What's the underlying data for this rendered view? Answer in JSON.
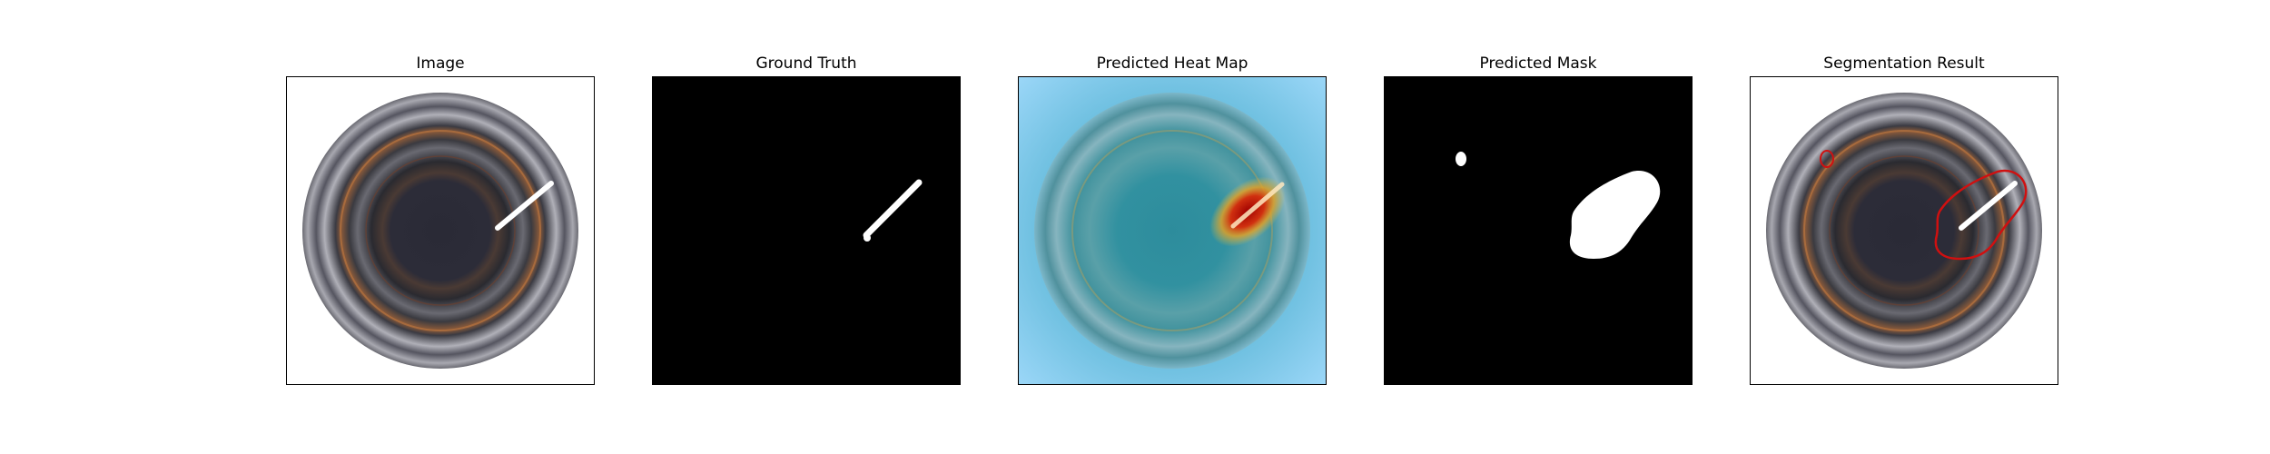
{
  "figure": {
    "panels": [
      {
        "title": "Image"
      },
      {
        "title": "Ground Truth"
      },
      {
        "title": "Predicted Heat Map"
      },
      {
        "title": "Predicted Mask"
      },
      {
        "title": "Segmentation Result"
      }
    ]
  },
  "colors": {
    "background": "#ffffff",
    "frame": "#000000",
    "mask_foreground": "#ffffff",
    "mask_background": "#000000",
    "contour": "#d01010",
    "heat_low": "#8fd0f5",
    "heat_high": "#a00000"
  }
}
